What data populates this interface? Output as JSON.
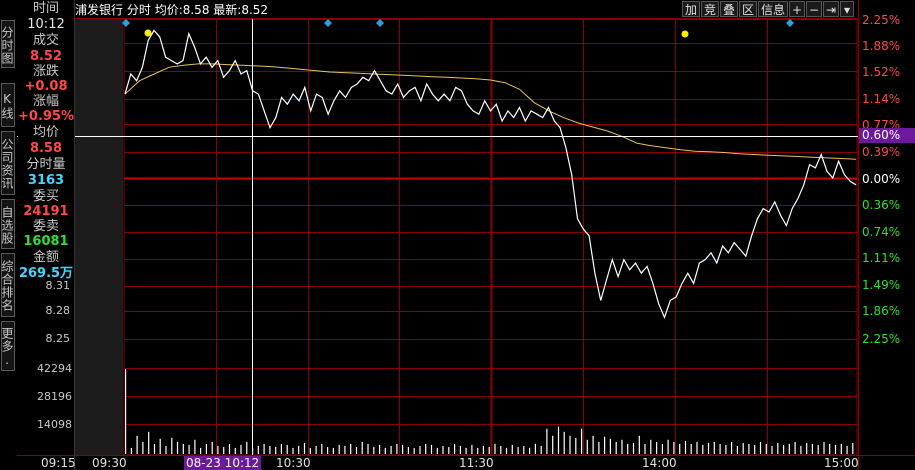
{
  "header": {
    "stock_name": "浦发银行",
    "mode": "分时",
    "avg_label": "均价:",
    "avg_value": "8.58",
    "latest_label": "最新:",
    "latest_value": "8.52"
  },
  "toolbar": {
    "items": [
      "加",
      "竞",
      "叠",
      "区",
      "信息",
      "+",
      "−",
      "⇥",
      "▾"
    ]
  },
  "side_tabs": [
    {
      "label": "分时图",
      "active": true
    },
    {
      "label": "K线图",
      "active": false
    },
    {
      "label": "公司资讯",
      "active": false
    },
    {
      "label": "自选股",
      "active": false
    },
    {
      "label": "综合排名",
      "active": false
    },
    {
      "label": "更多.",
      "active": false
    }
  ],
  "info_panel": {
    "time_label": "时间",
    "time_value": "10:12",
    "deal_label": "成交",
    "deal_value": "8.52",
    "change_label": "涨跌",
    "change_value": "+0.08",
    "pct_label": "涨幅",
    "pct_value": "+0.95%",
    "avg_label": "均价",
    "avg_value": "8.58",
    "vol_label": "分时量",
    "vol_value": "3163",
    "buy_label": "委买",
    "buy_value": "24191",
    "sell_label": "委卖",
    "sell_value": "16081",
    "amount_label": "金额",
    "amount_value": "269.5万"
  },
  "left_axis": {
    "price_ticks": [
      "8.31",
      "8.28",
      "8.25"
    ],
    "volume_ticks": [
      "42294",
      "28196",
      "14098"
    ]
  },
  "right_axis": {
    "ticks": [
      {
        "label": "2.25%",
        "color": "#ff4848"
      },
      {
        "label": "1.88%",
        "color": "#ff4848"
      },
      {
        "label": "1.52%",
        "color": "#ff4848"
      },
      {
        "label": "1.14%",
        "color": "#ff4848"
      },
      {
        "label": "0.77%",
        "color": "#ff4848"
      },
      {
        "label": "0.39%",
        "color": "#ff4848"
      },
      {
        "label": "0.00%",
        "color": "#ffffff"
      },
      {
        "label": "0.36%",
        "color": "#30e030"
      },
      {
        "label": "0.74%",
        "color": "#30e030"
      },
      {
        "label": "1.11%",
        "color": "#30e030"
      },
      {
        "label": "1.49%",
        "color": "#30e030"
      },
      {
        "label": "1.86%",
        "color": "#30e030"
      },
      {
        "label": "2.25%",
        "color": "#30e030"
      }
    ],
    "cursor_pct": "0.60%"
  },
  "time_axis": {
    "labels": [
      "09:15",
      "09:30",
      "10:30",
      "11:30",
      "14:00",
      "15:00"
    ],
    "cursor_time": "08-23 10:12"
  },
  "colors": {
    "grid": "#8b0000",
    "price_line": "#ffffff",
    "avg_line": "#e8c060",
    "up": "#ff4848",
    "down": "#30e030",
    "cyan": "#40d8ff",
    "cursor_bg": "#6a1a9a",
    "marker_blue": "#2aa0e0",
    "marker_yellow": "#ffee00"
  },
  "chart_data": {
    "type": "line",
    "ylim_pct": [
      -2.25,
      2.25
    ],
    "price_series_pct": [
      1.25,
      1.55,
      1.45,
      1.65,
      2.05,
      2.2,
      2.1,
      1.8,
      1.75,
      1.7,
      1.75,
      2.15,
      1.95,
      1.7,
      1.8,
      1.65,
      1.75,
      1.5,
      1.6,
      1.75,
      1.55,
      1.6,
      1.3,
      1.25,
      1.0,
      0.75,
      0.9,
      1.2,
      1.1,
      1.25,
      1.15,
      1.35,
      1.0,
      1.25,
      1.2,
      0.95,
      1.15,
      1.3,
      1.2,
      1.35,
      1.4,
      1.5,
      1.45,
      1.6,
      1.45,
      1.3,
      1.25,
      1.4,
      1.2,
      1.3,
      1.35,
      1.15,
      1.4,
      1.25,
      1.15,
      1.25,
      1.15,
      1.35,
      1.3,
      1.1,
      1.0,
      0.95,
      1.15,
      1.0,
      1.1,
      0.85,
      1.0,
      0.9,
      1.05,
      0.85,
      1.0,
      0.95,
      0.9,
      1.05,
      0.85,
      0.75,
      0.45,
      0.05,
      -0.6,
      -0.75,
      -0.85,
      -1.4,
      -1.8,
      -1.5,
      -1.2,
      -1.45,
      -1.2,
      -1.35,
      -1.25,
      -1.4,
      -1.3,
      -1.55,
      -1.85,
      -2.05,
      -1.8,
      -1.75,
      -1.55,
      -1.4,
      -1.55,
      -1.25,
      -1.2,
      -1.1,
      -1.25,
      -1.0,
      -1.1,
      -0.95,
      -1.05,
      -1.15,
      -0.85,
      -0.6,
      -0.45,
      -0.5,
      -0.35,
      -0.55,
      -0.7,
      -0.45,
      -0.3,
      -0.1,
      0.2,
      0.15,
      0.35,
      0.1,
      0.0,
      0.25,
      0.05,
      -0.05,
      -0.1
    ],
    "avg_series_pct": [
      1.25,
      1.45,
      1.55,
      1.65,
      1.68,
      1.7,
      1.7,
      1.69,
      1.68,
      1.67,
      1.66,
      1.64,
      1.62,
      1.6,
      1.58,
      1.57,
      1.56,
      1.55,
      1.54,
      1.53,
      1.52,
      1.51,
      1.5,
      1.49,
      1.48,
      1.46,
      1.42,
      1.32,
      1.12,
      1.0,
      0.9,
      0.82,
      0.76,
      0.7,
      0.62,
      0.52,
      0.48,
      0.45,
      0.42,
      0.4,
      0.39,
      0.38,
      0.36,
      0.35,
      0.34,
      0.33,
      0.32,
      0.31,
      0.3,
      0.29,
      0.28
    ],
    "volume_values": [
      42000,
      3000,
      9000,
      6000,
      11000,
      5000,
      7500,
      4000,
      8000,
      6000,
      5000,
      4500,
      7000,
      3000,
      5000,
      6000,
      4000,
      3500,
      5000,
      3000,
      4500,
      6000,
      3000,
      4000,
      5000,
      4000,
      3500,
      5000,
      4500,
      3000,
      4000,
      5500,
      3000,
      4000,
      5000,
      3500,
      3000,
      4500,
      4000,
      5000,
      3500,
      6000,
      5000,
      3500,
      4500,
      3000,
      4000,
      5000,
      4500,
      3500,
      3000,
      4000,
      5000,
      4500,
      3000,
      4000,
      3500,
      5000,
      4000,
      3000,
      4500,
      3000,
      4000,
      3500,
      5000,
      4000,
      3000,
      4500,
      3500,
      4000,
      3000,
      5000,
      4000,
      12500,
      9000,
      13500,
      11000,
      9000,
      8000,
      12500,
      7000,
      9000,
      6000,
      8500,
      7500,
      6000,
      7000,
      5000,
      5500,
      9000,
      5000,
      7000,
      6000,
      5000,
      7000,
      6000,
      5000,
      6500,
      5000,
      6000,
      4500,
      5500,
      6000,
      5000,
      4500,
      6000,
      4000,
      5500,
      5000,
      4500,
      6000,
      5000,
      4000,
      5500,
      4500,
      5000,
      6000,
      4000,
      5500,
      5000,
      4500,
      6000,
      5000,
      4500,
      5000,
      4000,
      5500
    ],
    "volume_ylim": [
      0,
      56392
    ]
  }
}
